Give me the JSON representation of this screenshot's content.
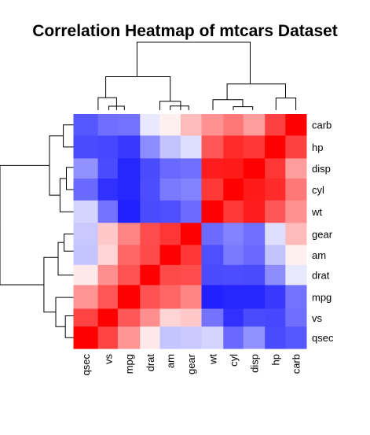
{
  "chart_data": {
    "type": "heatmap",
    "title": "Correlation Heatmap of mtcars Dataset",
    "row_labels": [
      "carb",
      "hp",
      "disp",
      "cyl",
      "wt",
      "gear",
      "am",
      "drat",
      "mpg",
      "vs",
      "qsec"
    ],
    "col_labels": [
      "qsec",
      "vs",
      "mpg",
      "drat",
      "am",
      "gear",
      "wt",
      "cyl",
      "disp",
      "hp",
      "carb"
    ],
    "values": [
      [
        -0.66,
        -0.57,
        -0.55,
        -0.09,
        0.06,
        0.27,
        0.43,
        0.53,
        0.39,
        0.75,
        1.0
      ],
      [
        -0.71,
        -0.72,
        -0.78,
        -0.45,
        -0.24,
        -0.13,
        0.66,
        0.83,
        0.79,
        1.0,
        0.75
      ],
      [
        -0.43,
        -0.71,
        -0.85,
        -0.71,
        -0.59,
        -0.56,
        0.89,
        0.9,
        1.0,
        0.79,
        0.39
      ],
      [
        -0.59,
        -0.81,
        -0.85,
        -0.7,
        -0.52,
        -0.49,
        0.78,
        1.0,
        0.9,
        0.83,
        0.53
      ],
      [
        -0.17,
        -0.55,
        -0.87,
        -0.71,
        -0.69,
        -0.58,
        1.0,
        0.78,
        0.89,
        0.66,
        0.43
      ],
      [
        -0.21,
        0.21,
        0.48,
        0.7,
        0.79,
        1.0,
        -0.58,
        -0.49,
        -0.56,
        -0.13,
        0.27
      ],
      [
        -0.23,
        0.17,
        0.6,
        0.71,
        1.0,
        0.79,
        -0.69,
        -0.52,
        -0.59,
        -0.24,
        0.06
      ],
      [
        0.09,
        0.44,
        0.68,
        1.0,
        0.71,
        0.7,
        -0.71,
        -0.7,
        -0.71,
        -0.45,
        -0.09
      ],
      [
        0.42,
        0.66,
        1.0,
        0.68,
        0.6,
        0.48,
        -0.87,
        -0.85,
        -0.85,
        -0.78,
        -0.55
      ],
      [
        0.74,
        1.0,
        0.66,
        0.44,
        0.17,
        0.21,
        -0.55,
        -0.81,
        -0.71,
        -0.72,
        -0.57
      ],
      [
        1.0,
        0.74,
        0.42,
        0.09,
        -0.23,
        -0.21,
        -0.17,
        -0.59,
        -0.43,
        -0.71,
        -0.66
      ]
    ],
    "value_range": [
      -1,
      1
    ],
    "color_scale": {
      "low": "#0000ff",
      "mid": "#ffffff",
      "high": "#ff0000"
    },
    "row_dendrogram": true,
    "col_dendrogram": true,
    "legend": "none"
  }
}
